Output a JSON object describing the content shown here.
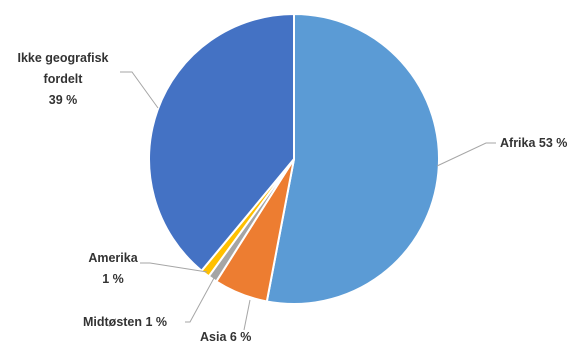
{
  "chart_data": {
    "type": "pie",
    "title": "",
    "slices": [
      {
        "name": "Afrika",
        "value": 53,
        "pct_label": "53 %",
        "color": "#5B9BD5"
      },
      {
        "name": "Asia",
        "value": 6,
        "pct_label": "6 %",
        "color": "#ED7D31"
      },
      {
        "name": "Midtøsten",
        "value": 1,
        "pct_label": "1 %",
        "color": "#A5A5A5"
      },
      {
        "name": "Amerika",
        "value": 1,
        "pct_label": "1 %",
        "color": "#FFC000"
      },
      {
        "name": "Ikke geografisk fordelt",
        "value": 39,
        "pct_label": "39 %",
        "color": "#4472C4"
      }
    ],
    "labels": {
      "afrika": "Afrika 53 %",
      "asia": "Asia 6 %",
      "midtosten": "Midtøsten 1 %",
      "amerika_name": "Amerika",
      "amerika_pct": "1 %",
      "ikke_line1": "Ikke geografisk",
      "ikke_line2": "fordelt",
      "ikke_pct": "39 %"
    },
    "legend": "none"
  }
}
